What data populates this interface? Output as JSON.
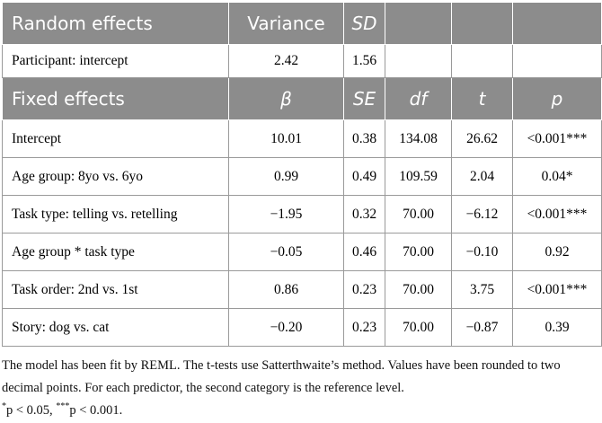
{
  "random": {
    "headers": [
      "Random effects",
      "Variance",
      "SD",
      "",
      "",
      ""
    ],
    "row": [
      "Participant: intercept",
      "2.42",
      "1.56",
      "",
      "",
      ""
    ]
  },
  "fixed": {
    "headers": [
      "Fixed effects",
      "β",
      "SE",
      "df",
      "t",
      "p"
    ],
    "rows": [
      [
        "Intercept",
        "10.01",
        "0.38",
        "134.08",
        "26.62",
        "<0.001***"
      ],
      [
        "Age group: 8yo vs. 6yo",
        "0.99",
        "0.49",
        "109.59",
        "2.04",
        "0.04*"
      ],
      [
        "Task type: telling vs. retelling",
        "−1.95",
        "0.32",
        "70.00",
        "−6.12",
        "<0.001***"
      ],
      [
        "Age group * task type",
        "−0.05",
        "0.46",
        "70.00",
        "−0.10",
        "0.92"
      ],
      [
        "Task order: 2nd vs. 1st",
        "0.86",
        "0.23",
        "70.00",
        "3.75",
        "<0.001***"
      ],
      [
        "Story: dog vs. cat",
        "−0.20",
        "0.23",
        "70.00",
        "−0.87",
        "0.39"
      ]
    ]
  },
  "notes": {
    "line1": "The model has been fit by REML. The t-tests use Satterthwaite’s method. Values have been rounded to two decimal points. For each predictor, the second category is the reference level.",
    "sig1_mark": "*",
    "sig1_text": "p < 0.05, ",
    "sig2_mark": "***",
    "sig2_text": "p < 0.001."
  }
}
